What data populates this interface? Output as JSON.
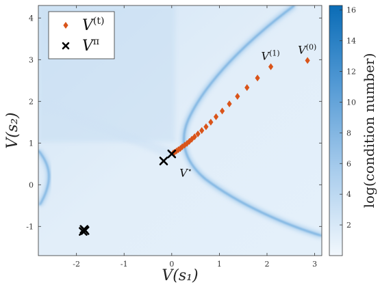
{
  "chart_data": {
    "type": "scatter",
    "title": "",
    "xlabel": "V(s₁)",
    "ylabel": "V(s₂)",
    "xlim": [
      -2.8,
      3.15
    ],
    "ylim": [
      -1.7,
      4.3
    ],
    "xticks": [
      -2,
      -1,
      0,
      1,
      2,
      3
    ],
    "yticks": [
      -1,
      0,
      1,
      2,
      3,
      4
    ],
    "grid": false,
    "legend_position": "top-left",
    "legend": [
      {
        "label": "V",
        "sup": "(t)",
        "marker": "diamond",
        "color": "#d9541a"
      },
      {
        "label": "V",
        "sup": "π",
        "marker": "x",
        "color": "#000000"
      }
    ],
    "series": [
      {
        "name": "V(t)",
        "marker": "diamond",
        "color": "#d9541a",
        "points": [
          [
            2.85,
            2.98
          ],
          [
            2.08,
            2.83
          ],
          [
            1.8,
            2.56
          ],
          [
            1.58,
            2.33
          ],
          [
            1.38,
            2.12
          ],
          [
            1.21,
            1.94
          ],
          [
            1.06,
            1.77
          ],
          [
            0.93,
            1.63
          ],
          [
            0.82,
            1.5
          ],
          [
            0.72,
            1.39
          ],
          [
            0.63,
            1.3
          ],
          [
            0.55,
            1.22
          ],
          [
            0.48,
            1.15
          ],
          [
            0.42,
            1.09
          ],
          [
            0.37,
            1.04
          ],
          [
            0.32,
            0.99
          ],
          [
            0.27,
            0.95
          ],
          [
            0.22,
            0.91
          ],
          [
            0.18,
            0.87
          ],
          [
            0.14,
            0.84
          ],
          [
            0.1,
            0.81
          ],
          [
            0.06,
            0.78
          ],
          [
            0.03,
            0.76
          ]
        ]
      },
      {
        "name": "Vπ",
        "marker": "x",
        "color": "#000000",
        "points": [
          [
            0.0,
            0.74
          ],
          [
            -0.17,
            0.57
          ],
          [
            -1.84,
            -1.07
          ],
          [
            -1.86,
            -1.12
          ],
          [
            -1.82,
            -1.1
          ]
        ]
      }
    ],
    "annotations": [
      {
        "text": "V",
        "sup": "(1)",
        "x": 2.08,
        "y": 2.83
      },
      {
        "text": "V",
        "sup": "(0)",
        "x": 2.85,
        "y": 2.98
      },
      {
        "text": "V",
        "sup": "⋆",
        "x": 0.05,
        "y": 0.42
      }
    ],
    "colorbar": {
      "label": "log(condition number)",
      "range": [
        0,
        16.3
      ],
      "ticks": [
        2,
        4,
        6,
        8,
        10,
        12,
        14,
        16
      ],
      "color_low": "#f2f8fd",
      "color_high": "#0a6cb6"
    }
  }
}
